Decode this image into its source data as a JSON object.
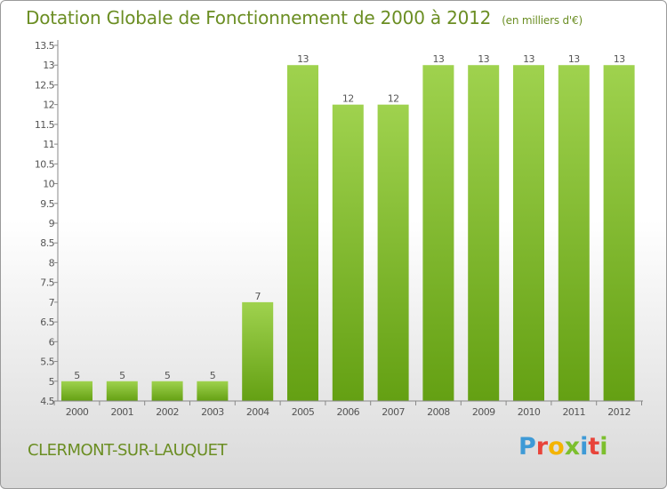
{
  "header": {
    "title": "Dotation Globale de Fonctionnement de 2000 à 2012",
    "unit": "(en milliers d'€)"
  },
  "footer": {
    "commune": "CLERMONT-SUR-LAUQUET",
    "logo_letters": [
      "P",
      "r",
      "o",
      "x",
      "i",
      "t",
      "i"
    ],
    "logo_colors": [
      "#3e9ad6",
      "#e8443a",
      "#f4b400",
      "#7cbf2d",
      "#3e9ad6",
      "#e8443a",
      "#7cbf2d"
    ]
  },
  "colors": {
    "bar_light": "#9fd24e",
    "bar_dark": "#64a013",
    "text_green": "#6b8e23",
    "axis": "#888888"
  },
  "chart_data": {
    "type": "bar",
    "categories": [
      "2000",
      "2001",
      "2002",
      "2003",
      "2004",
      "2005",
      "2006",
      "2007",
      "2008",
      "2009",
      "2010",
      "2011",
      "2012"
    ],
    "values": [
      5,
      5,
      5,
      5,
      7,
      13,
      12,
      12,
      13,
      13,
      13,
      13,
      13
    ],
    "data_labels": [
      "5",
      "5",
      "5",
      "5",
      "7",
      "13",
      "12",
      "12",
      "13",
      "13",
      "13",
      "13",
      "13"
    ],
    "yticks": [
      "4.5",
      "5",
      "5.5",
      "6",
      "6.5",
      "7",
      "7.5",
      "8",
      "8.5",
      "9",
      "9.5",
      "10",
      "10.5",
      "11",
      "11.5",
      "12",
      "12.5",
      "13",
      "13.5"
    ],
    "ylim": [
      4.5,
      13.5
    ],
    "grid": false,
    "legend": "none"
  }
}
